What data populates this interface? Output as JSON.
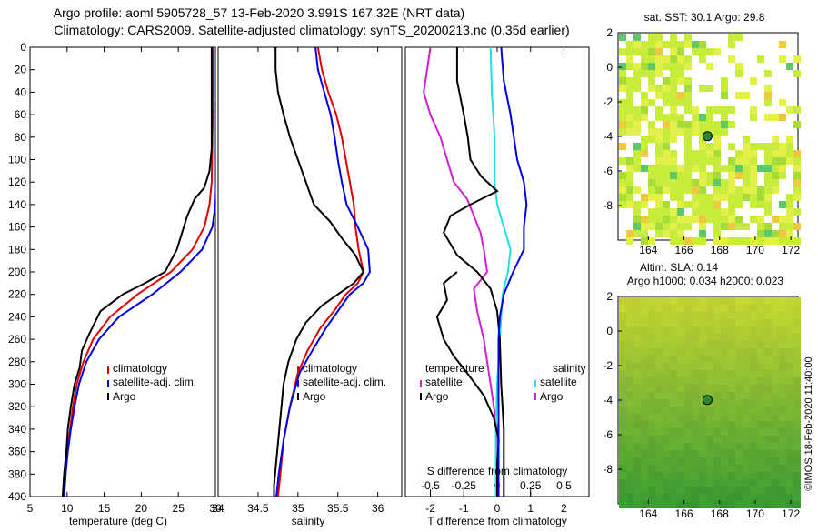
{
  "header": {
    "title_line1": "Argo profile: aoml 5905728_57 13-Feb-2020 3.991S 167.32E (NRT data)",
    "title_line2": "Climatology: CARS2009. Satellite-adjusted climatology: synTS_20200213.nc (0.35d earlier)"
  },
  "colors": {
    "climatology": "#e00000",
    "satellite": "#0000e0",
    "argo": "#000000",
    "t_diff": "#d020d0",
    "s_diff": "#20e0e0"
  },
  "chart_data": [
    {
      "type": "line",
      "name": "temperature",
      "xlabel": "temperature (deg C)",
      "xlim": [
        5,
        30
      ],
      "xticks": [
        5,
        10,
        15,
        20,
        25,
        30
      ],
      "ylim": [
        0,
        400
      ],
      "yticks": [
        0,
        20,
        40,
        60,
        80,
        100,
        120,
        140,
        160,
        180,
        200,
        220,
        240,
        260,
        280,
        300,
        320,
        340,
        360,
        380,
        400
      ],
      "legend": [
        "climatology",
        "satellite-adj. clim.",
        "Argo"
      ],
      "series": [
        {
          "name": "climatology",
          "points": [
            [
              29.7,
              0
            ],
            [
              29.7,
              40
            ],
            [
              29.6,
              80
            ],
            [
              29.5,
              120
            ],
            [
              29.2,
              140
            ],
            [
              28.5,
              160
            ],
            [
              26.9,
              180
            ],
            [
              24.0,
              200
            ],
            [
              19.5,
              220
            ],
            [
              15.8,
              240
            ],
            [
              13.5,
              260
            ],
            [
              12.2,
              280
            ],
            [
              11.3,
              300
            ],
            [
              10.8,
              320
            ],
            [
              10.4,
              340
            ],
            [
              10.0,
              360
            ],
            [
              9.8,
              380
            ],
            [
              9.6,
              400
            ]
          ]
        },
        {
          "name": "satellite-adj. clim.",
          "points": [
            [
              30.1,
              0
            ],
            [
              30.1,
              40
            ],
            [
              30.1,
              80
            ],
            [
              30.1,
              120
            ],
            [
              30.0,
              140
            ],
            [
              29.6,
              160
            ],
            [
              28.2,
              180
            ],
            [
              25.3,
              200
            ],
            [
              21.5,
              220
            ],
            [
              17.0,
              240
            ],
            [
              14.3,
              260
            ],
            [
              12.6,
              280
            ],
            [
              11.6,
              300
            ],
            [
              11.0,
              320
            ],
            [
              10.5,
              340
            ],
            [
              10.1,
              360
            ],
            [
              9.8,
              380
            ],
            [
              9.6,
              400
            ]
          ]
        },
        {
          "name": "Argo",
          "points": [
            [
              29.5,
              0
            ],
            [
              29.5,
              60
            ],
            [
              29.5,
              90
            ],
            [
              29.2,
              110
            ],
            [
              28.5,
              125
            ],
            [
              27.2,
              135
            ],
            [
              26.2,
              150
            ],
            [
              25.5,
              165
            ],
            [
              24.8,
              180
            ],
            [
              23.2,
              200
            ],
            [
              20.5,
              210
            ],
            [
              17.5,
              220
            ],
            [
              14.5,
              235
            ],
            [
              13.0,
              255
            ],
            [
              12.0,
              270
            ],
            [
              11.7,
              285
            ],
            [
              11.0,
              300
            ],
            [
              10.5,
              320
            ],
            [
              10.1,
              340
            ],
            [
              9.9,
              360
            ],
            [
              9.6,
              380
            ],
            [
              9.4,
              400
            ]
          ]
        }
      ]
    },
    {
      "type": "line",
      "name": "salinity",
      "xlabel": "salinity",
      "xlim": [
        34,
        36.3
      ],
      "xticks": [
        34,
        34.5,
        35,
        35.5,
        36
      ],
      "ylim": [
        0,
        400
      ],
      "legend": [
        "climatology",
        "satellite-adj. clim.",
        "Argo"
      ],
      "series": [
        {
          "name": "climatology",
          "points": [
            [
              35.25,
              0
            ],
            [
              35.3,
              20
            ],
            [
              35.38,
              40
            ],
            [
              35.48,
              60
            ],
            [
              35.55,
              80
            ],
            [
              35.6,
              100
            ],
            [
              35.65,
              120
            ],
            [
              35.7,
              140
            ],
            [
              35.72,
              160
            ],
            [
              35.76,
              180
            ],
            [
              35.82,
              200
            ],
            [
              35.75,
              210
            ],
            [
              35.6,
              220
            ],
            [
              35.45,
              235
            ],
            [
              35.28,
              250
            ],
            [
              35.12,
              270
            ],
            [
              35.0,
              290
            ],
            [
              34.9,
              320
            ],
            [
              34.82,
              350
            ],
            [
              34.78,
              380
            ],
            [
              34.75,
              400
            ]
          ]
        },
        {
          "name": "satellite-adj. clim.",
          "points": [
            [
              35.22,
              0
            ],
            [
              35.25,
              20
            ],
            [
              35.33,
              40
            ],
            [
              35.41,
              60
            ],
            [
              35.46,
              80
            ],
            [
              35.5,
              100
            ],
            [
              35.55,
              120
            ],
            [
              35.61,
              140
            ],
            [
              35.75,
              160
            ],
            [
              35.88,
              180
            ],
            [
              35.9,
              200
            ],
            [
              35.82,
              210
            ],
            [
              35.65,
              220
            ],
            [
              35.5,
              235
            ],
            [
              35.35,
              250
            ],
            [
              35.18,
              270
            ],
            [
              35.02,
              290
            ],
            [
              34.9,
              320
            ],
            [
              34.82,
              350
            ],
            [
              34.76,
              380
            ],
            [
              34.73,
              400
            ]
          ]
        },
        {
          "name": "Argo",
          "points": [
            [
              34.72,
              0
            ],
            [
              34.72,
              20
            ],
            [
              34.75,
              40
            ],
            [
              34.82,
              60
            ],
            [
              34.9,
              80
            ],
            [
              35.0,
              100
            ],
            [
              35.1,
              120
            ],
            [
              35.2,
              140
            ],
            [
              35.4,
              155
            ],
            [
              35.55,
              170
            ],
            [
              35.72,
              185
            ],
            [
              35.82,
              200
            ],
            [
              35.7,
              210
            ],
            [
              35.5,
              220
            ],
            [
              35.3,
              230
            ],
            [
              35.1,
              245
            ],
            [
              34.98,
              260
            ],
            [
              34.88,
              280
            ],
            [
              34.82,
              300
            ],
            [
              34.78,
              330
            ],
            [
              34.74,
              360
            ],
            [
              34.7,
              390
            ],
            [
              34.7,
              400
            ]
          ]
        }
      ]
    },
    {
      "type": "line",
      "name": "difference",
      "xlabel": "T difference from climatology",
      "xlim": [
        -2.75,
        2.75
      ],
      "xticks": [
        -2,
        -1,
        0,
        1,
        2
      ],
      "top_label": "S difference from climatology",
      "top_ticks": [
        -0.5,
        -0.25,
        0,
        0.25,
        0.5
      ],
      "ylim": [
        0,
        400
      ],
      "legend_left_title": "temperature",
      "legend_right_title": "salinity",
      "legend_left": [
        "satellite",
        "Argo"
      ],
      "legend_right": [
        "satellite",
        "Argo"
      ],
      "series": [
        {
          "name": "temperature satellite",
          "points": [
            [
              -2.0,
              0
            ],
            [
              -2.1,
              20
            ],
            [
              -2.2,
              40
            ],
            [
              -2.0,
              60
            ],
            [
              -1.7,
              80
            ],
            [
              -1.5,
              100
            ],
            [
              -1.3,
              120
            ],
            [
              -0.9,
              135
            ],
            [
              -0.7,
              150
            ],
            [
              -0.5,
              165
            ],
            [
              -0.4,
              180
            ],
            [
              -0.3,
              200
            ],
            [
              -0.7,
              215
            ],
            [
              -0.6,
              235
            ],
            [
              -0.4,
              260
            ],
            [
              -0.3,
              280
            ],
            [
              -0.2,
              300
            ],
            [
              -0.1,
              320
            ],
            [
              0.0,
              340
            ],
            [
              0.0,
              370
            ],
            [
              0.0,
              400
            ]
          ]
        },
        {
          "name": "salinity satellite",
          "points": [
            [
              -0.05,
              0
            ],
            [
              -0.04,
              40
            ],
            [
              -0.02,
              80
            ],
            [
              -0.02,
              120
            ],
            [
              0.0,
              140
            ],
            [
              0.05,
              160
            ],
            [
              0.1,
              180
            ],
            [
              0.08,
              200
            ],
            [
              0.04,
              220
            ],
            [
              0.02,
              260
            ],
            [
              0.0,
              300
            ],
            [
              -0.01,
              340
            ],
            [
              -0.01,
              380
            ],
            [
              -0.01,
              400
            ]
          ]
        },
        {
          "name": "T Argo",
          "points": [
            [
              -1.2,
              200
            ],
            [
              -1.6,
              210
            ],
            [
              -1.5,
              225
            ],
            [
              -1.8,
              240
            ],
            [
              -1.6,
              260
            ],
            [
              -1.3,
              275
            ],
            [
              -0.9,
              290
            ],
            [
              -0.4,
              310
            ],
            [
              -0.1,
              330
            ],
            [
              0.05,
              350
            ],
            [
              0.0,
              370
            ],
            [
              0.0,
              400
            ]
          ]
        },
        {
          "name": "S Argo",
          "points": [
            [
              -0.3,
              0
            ],
            [
              -0.3,
              30
            ],
            [
              -0.25,
              60
            ],
            [
              -0.22,
              80
            ],
            [
              -0.2,
              100
            ],
            [
              -0.12,
              115
            ],
            [
              0.0,
              128
            ],
            [
              -0.2,
              140
            ],
            [
              -0.35,
              150
            ],
            [
              -0.4,
              165
            ],
            [
              -0.3,
              185
            ],
            [
              -0.15,
              200
            ],
            [
              -0.05,
              215
            ],
            [
              0.0,
              235
            ],
            [
              0.02,
              260
            ],
            [
              0.03,
              300
            ],
            [
              0.05,
              340
            ],
            [
              0.05,
              400
            ]
          ]
        },
        {
          "name": "S Satellite",
          "points": [
            [
              0.03,
              0
            ],
            [
              0.05,
              30
            ],
            [
              0.1,
              60
            ],
            [
              0.15,
              100
            ],
            [
              0.2,
              120
            ],
            [
              0.22,
              140
            ],
            [
              0.2,
              160
            ],
            [
              0.2,
              180
            ],
            [
              0.12,
              200
            ],
            [
              0.05,
              220
            ],
            [
              0.02,
              240
            ],
            [
              0.01,
              260
            ],
            [
              0.01,
              300
            ],
            [
              0.01,
              340
            ],
            [
              0.01,
              400
            ]
          ]
        }
      ]
    },
    {
      "type": "heatmap",
      "name": "sst_map",
      "title": "sat. SST: 30.1  Argo: 29.8",
      "xticks": [
        164,
        166,
        168,
        170,
        172
      ],
      "yticks": [
        2,
        0,
        -2,
        -4,
        -6,
        -8
      ],
      "xlim": [
        162.3,
        172.4
      ],
      "ylim": [
        -10,
        2
      ],
      "marker": [
        167.32,
        -3.99
      ]
    },
    {
      "type": "heatmap",
      "name": "altimetry_map",
      "title_line1": "Altim.  SLA: 0.14",
      "title_line2": "Argo h1000: 0.034 h2000: 0.023",
      "xticks": [
        164,
        166,
        168,
        170,
        172
      ],
      "yticks": [
        2,
        0,
        -2,
        -4,
        -6,
        -8
      ],
      "xlim": [
        162.3,
        172.4
      ],
      "ylim": [
        -10,
        2
      ],
      "marker": [
        167.32,
        -3.99
      ]
    }
  ],
  "credit": "©IMOS 18-Feb-2020 11:40:00"
}
